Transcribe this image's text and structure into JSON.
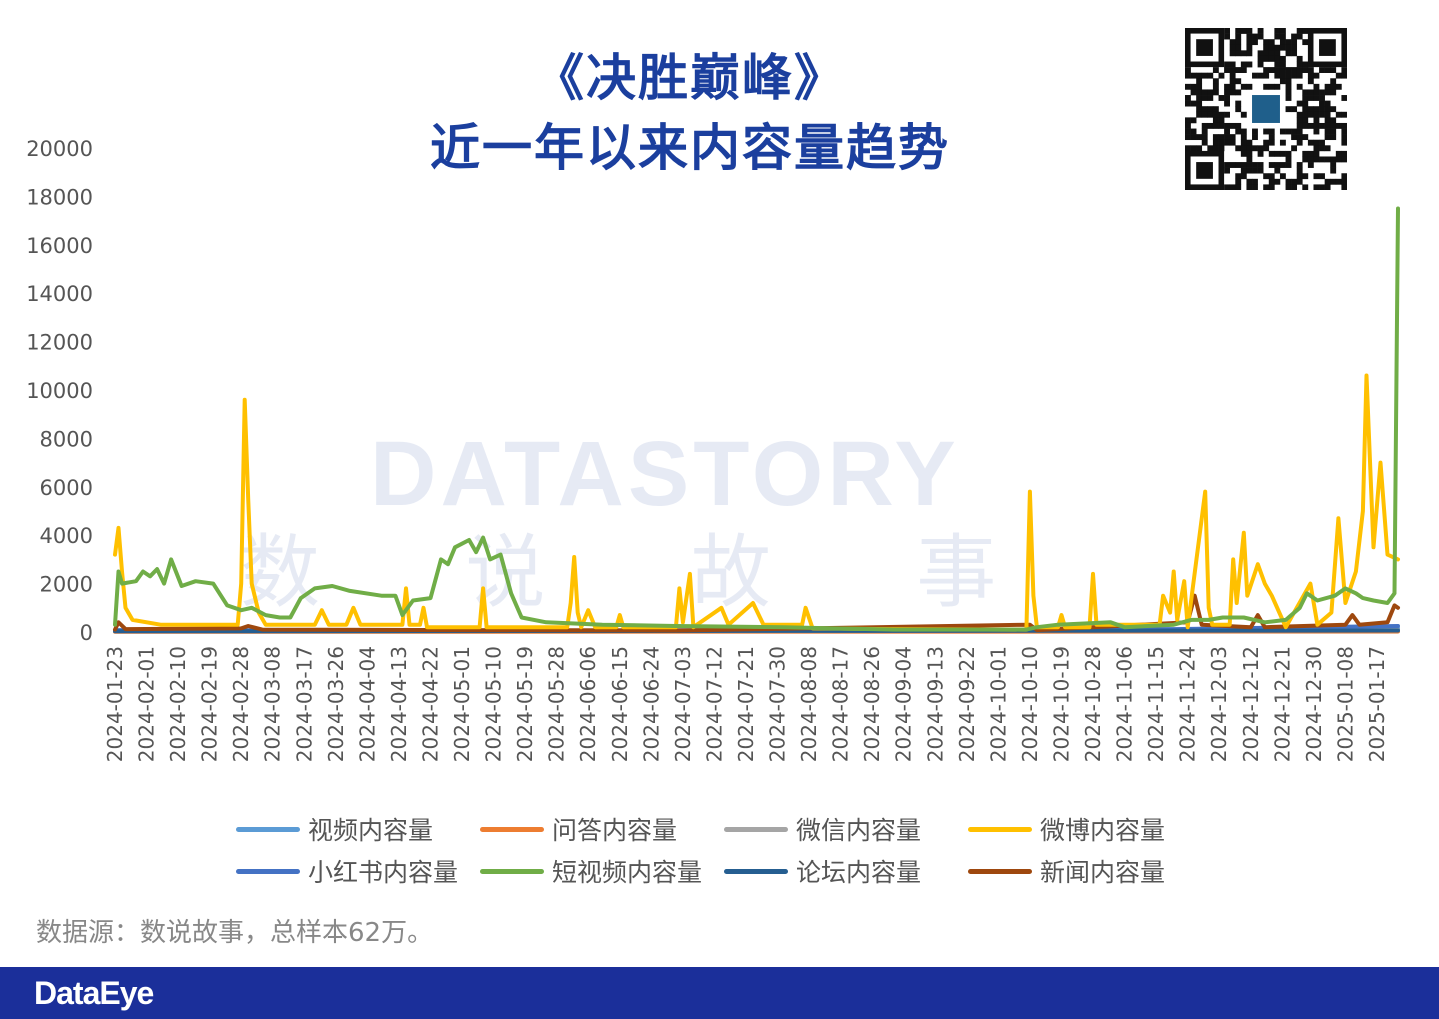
{
  "header": {
    "title_line1": "《决胜巅峰》",
    "title_line2": "近一年以来内容量趋势"
  },
  "qr": {
    "icon": "qr-code-icon"
  },
  "watermark": {
    "text": "DATASTORY",
    "subtext": "数 说 故 事"
  },
  "footer": {
    "source_text": "数据源：数说故事，总样本62万。",
    "logo_text": "DataEye",
    "bar_color": "#1b2f9a"
  },
  "chart_data": {
    "type": "line",
    "ylim": [
      0,
      20000
    ],
    "yticks": [
      0,
      2000,
      4000,
      6000,
      8000,
      10000,
      12000,
      14000,
      16000,
      18000,
      20000
    ],
    "x_start": "2024-01-23",
    "x_end": "2025-01-23",
    "xticks": [
      "2024-01-23",
      "2024-02-01",
      "2024-02-10",
      "2024-02-19",
      "2024-02-28",
      "2024-03-08",
      "2024-03-17",
      "2024-03-26",
      "2024-04-04",
      "2024-04-13",
      "2024-04-22",
      "2024-05-01",
      "2024-05-10",
      "2024-05-19",
      "2024-05-28",
      "2024-06-06",
      "2024-06-15",
      "2024-06-24",
      "2024-07-03",
      "2024-07-12",
      "2024-07-21",
      "2024-07-30",
      "2024-08-08",
      "2024-08-17",
      "2024-08-26",
      "2024-09-04",
      "2024-09-13",
      "2024-09-22",
      "2024-10-01",
      "2024-10-10",
      "2024-10-19",
      "2024-10-28",
      "2024-11-06",
      "2024-11-15",
      "2024-11-24",
      "2024-12-03",
      "2024-12-12",
      "2024-12-21",
      "2024-12-30",
      "2025-01-08",
      "2025-01-17"
    ],
    "legend": [
      {
        "name": "视频内容量",
        "color": "#5b9bd5"
      },
      {
        "name": "问答内容量",
        "color": "#ed7d31"
      },
      {
        "name": "微信内容量",
        "color": "#a5a5a5"
      },
      {
        "name": "微博内容量",
        "color": "#ffc000"
      },
      {
        "name": "小红书内容量",
        "color": "#4472c4"
      },
      {
        "name": "短视频内容量",
        "color": "#70ad47"
      },
      {
        "name": "论坛内容量",
        "color": "#255e91"
      },
      {
        "name": "新闻内容量",
        "color": "#9e480e"
      }
    ],
    "series": [
      {
        "name": "视频内容量",
        "color": "#5b9bd5",
        "points": [
          [
            "2024-01-23",
            50
          ],
          [
            "2024-06-01",
            60
          ],
          [
            "2024-12-01",
            80
          ],
          [
            "2025-01-23",
            150
          ]
        ]
      },
      {
        "name": "问答内容量",
        "color": "#ed7d31",
        "points": [
          [
            "2024-01-23",
            10
          ],
          [
            "2025-01-23",
            20
          ]
        ]
      },
      {
        "name": "微信内容量",
        "color": "#a5a5a5",
        "points": [
          [
            "2024-01-23",
            40
          ],
          [
            "2024-07-01",
            50
          ],
          [
            "2025-01-23",
            80
          ]
        ]
      },
      {
        "name": "小红书内容量",
        "color": "#4472c4",
        "points": [
          [
            "2024-01-23",
            80
          ],
          [
            "2024-06-01",
            60
          ],
          [
            "2024-11-20",
            120
          ],
          [
            "2025-01-23",
            250
          ]
        ]
      },
      {
        "name": "论坛内容量",
        "color": "#255e91",
        "points": [
          [
            "2024-01-23",
            30
          ],
          [
            "2025-01-23",
            60
          ]
        ]
      },
      {
        "name": "新闻内容量",
        "color": "#9e480e",
        "points": [
          [
            "2024-01-23",
            100
          ],
          [
            "2024-01-24",
            400
          ],
          [
            "2024-01-26",
            120
          ],
          [
            "2024-02-28",
            150
          ],
          [
            "2024-03-01",
            250
          ],
          [
            "2024-03-05",
            100
          ],
          [
            "2024-05-01",
            80
          ],
          [
            "2024-07-01",
            60
          ],
          [
            "2024-10-10",
            300
          ],
          [
            "2024-10-12",
            80
          ],
          [
            "2024-11-24",
            400
          ],
          [
            "2024-11-26",
            1500
          ],
          [
            "2024-11-28",
            300
          ],
          [
            "2024-12-12",
            200
          ],
          [
            "2024-12-14",
            700
          ],
          [
            "2024-12-16",
            200
          ],
          [
            "2025-01-08",
            300
          ],
          [
            "2025-01-10",
            700
          ],
          [
            "2025-01-12",
            300
          ],
          [
            "2025-01-20",
            400
          ],
          [
            "2025-01-22",
            1100
          ],
          [
            "2025-01-23",
            1000
          ]
        ]
      },
      {
        "name": "微博内容量",
        "color": "#ffc000",
        "points": [
          [
            "2024-01-23",
            3200
          ],
          [
            "2024-01-24",
            4300
          ],
          [
            "2024-01-25",
            2500
          ],
          [
            "2024-01-26",
            1000
          ],
          [
            "2024-01-28",
            500
          ],
          [
            "2024-02-05",
            300
          ],
          [
            "2024-02-15",
            300
          ],
          [
            "2024-02-27",
            300
          ],
          [
            "2024-02-28",
            2000
          ],
          [
            "2024-02-29",
            9600
          ],
          [
            "2024-03-01",
            5500
          ],
          [
            "2024-03-02",
            2000
          ],
          [
            "2024-03-04",
            800
          ],
          [
            "2024-03-06",
            300
          ],
          [
            "2024-03-20",
            300
          ],
          [
            "2024-03-22",
            900
          ],
          [
            "2024-03-24",
            300
          ],
          [
            "2024-03-29",
            300
          ],
          [
            "2024-03-31",
            1000
          ],
          [
            "2024-04-02",
            300
          ],
          [
            "2024-04-14",
            300
          ],
          [
            "2024-04-15",
            1800
          ],
          [
            "2024-04-16",
            300
          ],
          [
            "2024-04-19",
            300
          ],
          [
            "2024-04-20",
            1000
          ],
          [
            "2024-04-21",
            200
          ],
          [
            "2024-05-06",
            200
          ],
          [
            "2024-05-07",
            1800
          ],
          [
            "2024-05-08",
            200
          ],
          [
            "2024-05-31",
            200
          ],
          [
            "2024-06-01",
            1200
          ],
          [
            "2024-06-02",
            3100
          ],
          [
            "2024-06-03",
            800
          ],
          [
            "2024-06-04",
            200
          ],
          [
            "2024-06-06",
            900
          ],
          [
            "2024-06-08",
            200
          ],
          [
            "2024-06-14",
            200
          ],
          [
            "2024-06-15",
            700
          ],
          [
            "2024-06-16",
            200
          ],
          [
            "2024-07-01",
            200
          ],
          [
            "2024-07-02",
            1800
          ],
          [
            "2024-07-03",
            400
          ],
          [
            "2024-07-05",
            2400
          ],
          [
            "2024-07-06",
            200
          ],
          [
            "2024-07-14",
            1000
          ],
          [
            "2024-07-16",
            300
          ],
          [
            "2024-07-23",
            1200
          ],
          [
            "2024-07-26",
            300
          ],
          [
            "2024-08-06",
            300
          ],
          [
            "2024-08-07",
            1000
          ],
          [
            "2024-08-09",
            150
          ],
          [
            "2024-09-01",
            120
          ],
          [
            "2024-10-09",
            100
          ],
          [
            "2024-10-10",
            5800
          ],
          [
            "2024-10-11",
            1500
          ],
          [
            "2024-10-12",
            200
          ],
          [
            "2024-10-18",
            200
          ],
          [
            "2024-10-19",
            700
          ],
          [
            "2024-10-20",
            200
          ],
          [
            "2024-10-27",
            200
          ],
          [
            "2024-10-28",
            2400
          ],
          [
            "2024-10-29",
            300
          ],
          [
            "2024-11-16",
            300
          ],
          [
            "2024-11-17",
            1500
          ],
          [
            "2024-11-19",
            800
          ],
          [
            "2024-11-20",
            2500
          ],
          [
            "2024-11-21",
            500
          ],
          [
            "2024-11-23",
            2100
          ],
          [
            "2024-11-24",
            200
          ],
          [
            "2024-11-29",
            5800
          ],
          [
            "2024-11-30",
            1000
          ],
          [
            "2024-12-01",
            300
          ],
          [
            "2024-12-06",
            300
          ],
          [
            "2024-12-07",
            3000
          ],
          [
            "2024-12-08",
            1200
          ],
          [
            "2024-12-10",
            4100
          ],
          [
            "2024-12-11",
            1500
          ],
          [
            "2024-12-14",
            2800
          ],
          [
            "2024-12-16",
            2000
          ],
          [
            "2024-12-18",
            1500
          ],
          [
            "2024-12-22",
            200
          ],
          [
            "2024-12-29",
            2000
          ],
          [
            "2024-12-31",
            300
          ],
          [
            "2025-01-04",
            800
          ],
          [
            "2025-01-06",
            4700
          ],
          [
            "2025-01-08",
            1200
          ],
          [
            "2025-01-11",
            2500
          ],
          [
            "2025-01-13",
            5000
          ],
          [
            "2025-01-14",
            10600
          ],
          [
            "2025-01-16",
            3500
          ],
          [
            "2025-01-18",
            7000
          ],
          [
            "2025-01-20",
            3200
          ],
          [
            "2025-01-23",
            3000
          ]
        ]
      },
      {
        "name": "短视频内容量",
        "color": "#70ad47",
        "points": [
          [
            "2024-01-23",
            300
          ],
          [
            "2024-01-24",
            2500
          ],
          [
            "2024-01-25",
            2000
          ],
          [
            "2024-01-29",
            2100
          ],
          [
            "2024-01-31",
            2500
          ],
          [
            "2024-02-02",
            2300
          ],
          [
            "2024-02-04",
            2600
          ],
          [
            "2024-02-06",
            2000
          ],
          [
            "2024-02-08",
            3000
          ],
          [
            "2024-02-11",
            1900
          ],
          [
            "2024-02-15",
            2100
          ],
          [
            "2024-02-20",
            2000
          ],
          [
            "2024-02-24",
            1100
          ],
          [
            "2024-02-28",
            900
          ],
          [
            "2024-03-02",
            1000
          ],
          [
            "2024-03-06",
            700
          ],
          [
            "2024-03-10",
            600
          ],
          [
            "2024-03-13",
            600
          ],
          [
            "2024-03-16",
            1400
          ],
          [
            "2024-03-20",
            1800
          ],
          [
            "2024-03-25",
            1900
          ],
          [
            "2024-03-30",
            1700
          ],
          [
            "2024-04-08",
            1500
          ],
          [
            "2024-04-12",
            1500
          ],
          [
            "2024-04-14",
            700
          ],
          [
            "2024-04-17",
            1300
          ],
          [
            "2024-04-22",
            1400
          ],
          [
            "2024-04-25",
            3000
          ],
          [
            "2024-04-27",
            2800
          ],
          [
            "2024-04-29",
            3500
          ],
          [
            "2024-05-03",
            3800
          ],
          [
            "2024-05-05",
            3300
          ],
          [
            "2024-05-07",
            3900
          ],
          [
            "2024-05-09",
            3000
          ],
          [
            "2024-05-12",
            3200
          ],
          [
            "2024-05-15",
            1600
          ],
          [
            "2024-05-18",
            600
          ],
          [
            "2024-05-25",
            400
          ],
          [
            "2024-06-10",
            300
          ],
          [
            "2024-07-01",
            250
          ],
          [
            "2024-08-01",
            200
          ],
          [
            "2024-08-15",
            150
          ],
          [
            "2024-09-01",
            100
          ],
          [
            "2024-10-09",
            100
          ],
          [
            "2024-10-12",
            200
          ],
          [
            "2024-10-18",
            300
          ],
          [
            "2024-11-02",
            400
          ],
          [
            "2024-11-06",
            200
          ],
          [
            "2024-11-20",
            300
          ],
          [
            "2024-11-25",
            500
          ],
          [
            "2024-11-30",
            500
          ],
          [
            "2024-12-04",
            600
          ],
          [
            "2024-12-10",
            600
          ],
          [
            "2024-12-16",
            400
          ],
          [
            "2024-12-22",
            500
          ],
          [
            "2024-12-26",
            1000
          ],
          [
            "2024-12-28",
            1600
          ],
          [
            "2024-12-31",
            1300
          ],
          [
            "2025-01-05",
            1500
          ],
          [
            "2025-01-08",
            1800
          ],
          [
            "2025-01-11",
            1600
          ],
          [
            "2025-01-13",
            1400
          ],
          [
            "2025-01-16",
            1300
          ],
          [
            "2025-01-20",
            1200
          ],
          [
            "2025-01-22",
            1600
          ],
          [
            "2025-01-23",
            17500
          ]
        ]
      }
    ]
  }
}
